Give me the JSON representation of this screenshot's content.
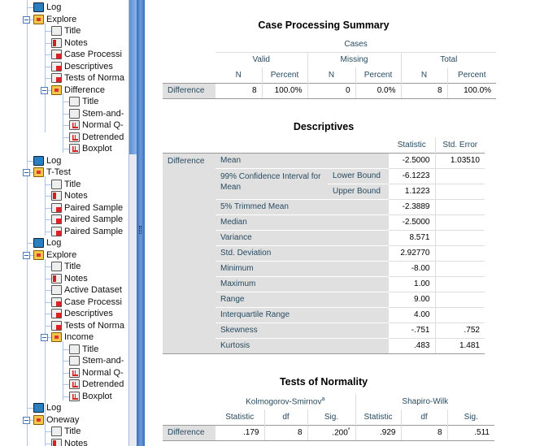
{
  "tree": [
    {
      "label": "Log",
      "icon": "log-icon",
      "level": 1
    },
    {
      "label": "Explore",
      "icon": "procedure-icon",
      "level": 1,
      "expanded": true
    },
    {
      "label": "Title",
      "icon": "title-icon",
      "level": 2
    },
    {
      "label": "Notes",
      "icon": "notes-icon",
      "level": 2
    },
    {
      "label": "Case Processi",
      "icon": "table-icon",
      "level": 2
    },
    {
      "label": "Descriptives",
      "icon": "table-icon",
      "level": 2
    },
    {
      "label": "Tests of Norma",
      "icon": "table-icon",
      "level": 2
    },
    {
      "label": "Difference",
      "icon": "procedure-icon",
      "level": 2,
      "expanded": true
    },
    {
      "label": "Title",
      "icon": "title-icon",
      "level": 3
    },
    {
      "label": "Stem-and-",
      "icon": "text-icon",
      "level": 3
    },
    {
      "label": "Normal Q-",
      "icon": "chart-icon",
      "level": 3
    },
    {
      "label": "Detrended",
      "icon": "chart-icon",
      "level": 3
    },
    {
      "label": "Boxplot",
      "icon": "chart-icon",
      "level": 3
    },
    {
      "label": "Log",
      "icon": "log-icon",
      "level": 1
    },
    {
      "label": "T-Test",
      "icon": "procedure-icon",
      "level": 1,
      "expanded": true
    },
    {
      "label": "Title",
      "icon": "title-icon",
      "level": 2
    },
    {
      "label": "Notes",
      "icon": "notes-icon",
      "level": 2
    },
    {
      "label": "Paired Sample",
      "icon": "table-icon",
      "level": 2
    },
    {
      "label": "Paired Sample",
      "icon": "table-icon",
      "level": 2
    },
    {
      "label": "Paired Sample",
      "icon": "table-icon",
      "level": 2
    },
    {
      "label": "Log",
      "icon": "log-icon",
      "level": 1
    },
    {
      "label": "Explore",
      "icon": "procedure-icon",
      "level": 1,
      "expanded": true
    },
    {
      "label": "Title",
      "icon": "title-icon",
      "level": 2
    },
    {
      "label": "Notes",
      "icon": "notes-icon",
      "level": 2
    },
    {
      "label": "Active Dataset",
      "icon": "text-icon",
      "level": 2
    },
    {
      "label": "Case Processi",
      "icon": "table-icon",
      "level": 2
    },
    {
      "label": "Descriptives",
      "icon": "table-icon",
      "level": 2
    },
    {
      "label": "Tests of Norma",
      "icon": "table-icon",
      "level": 2
    },
    {
      "label": "Income",
      "icon": "procedure-icon",
      "level": 2,
      "expanded": true
    },
    {
      "label": "Title",
      "icon": "title-icon",
      "level": 3
    },
    {
      "label": "Stem-and-",
      "icon": "text-icon",
      "level": 3
    },
    {
      "label": "Normal Q-",
      "icon": "chart-icon",
      "level": 3
    },
    {
      "label": "Detrended",
      "icon": "chart-icon",
      "level": 3
    },
    {
      "label": "Boxplot",
      "icon": "chart-icon",
      "level": 3
    },
    {
      "label": "Log",
      "icon": "log-icon",
      "level": 1
    },
    {
      "label": "Oneway",
      "icon": "procedure-icon",
      "level": 1,
      "expanded": true
    },
    {
      "label": "Title",
      "icon": "title-icon",
      "level": 2
    },
    {
      "label": "Notes",
      "icon": "notes-icon",
      "level": 2
    }
  ],
  "case_processing": {
    "title": "Case Processing Summary",
    "cases": "Cases",
    "valid": "Valid",
    "missing": "Missing",
    "total": "Total",
    "n": "N",
    "percent": "Percent",
    "row": {
      "label": "Difference",
      "valid_n": "8",
      "valid_pct": "100.0%",
      "missing_n": "0",
      "missing_pct": "0.0%",
      "total_n": "8",
      "total_pct": "100.0%"
    }
  },
  "descriptives": {
    "title": "Descriptives",
    "statistic": "Statistic",
    "std_error": "Std. Error",
    "variable": "Difference",
    "ci_label": "99% Confidence Interval for Mean",
    "lower": "Lower Bound",
    "upper": "Upper Bound",
    "rows": [
      {
        "label": "Mean",
        "stat": "-2.5000",
        "se": "1.03510"
      },
      {
        "label": "Lower Bound",
        "stat": "-6.1223",
        "se": ""
      },
      {
        "label": "Upper Bound",
        "stat": "1.1223",
        "se": ""
      },
      {
        "label": "5% Trimmed Mean",
        "stat": "-2.3889",
        "se": ""
      },
      {
        "label": "Median",
        "stat": "-2.5000",
        "se": ""
      },
      {
        "label": "Variance",
        "stat": "8.571",
        "se": ""
      },
      {
        "label": "Std. Deviation",
        "stat": "2.92770",
        "se": ""
      },
      {
        "label": "Minimum",
        "stat": "-8.00",
        "se": ""
      },
      {
        "label": "Maximum",
        "stat": "1.00",
        "se": ""
      },
      {
        "label": "Range",
        "stat": "9.00",
        "se": ""
      },
      {
        "label": "Interquartile Range",
        "stat": "4.00",
        "se": ""
      },
      {
        "label": "Skewness",
        "stat": "-.751",
        "se": ".752"
      },
      {
        "label": "Kurtosis",
        "stat": ".483",
        "se": "1.481"
      }
    ]
  },
  "normality": {
    "title": "Tests of Normality",
    "ks": "Kolmogorov-Smirnov",
    "ks_sup": "a",
    "sw": "Shapiro-Wilk",
    "statistic": "Statistic",
    "df": "df",
    "sig": "Sig.",
    "row": {
      "label": "Difference",
      "ks_stat": ".179",
      "ks_df": "8",
      "ks_sig": ".200",
      "ks_sig_sup": "*",
      "sw_stat": ".929",
      "sw_df": "8",
      "sw_sig": ".511"
    }
  }
}
